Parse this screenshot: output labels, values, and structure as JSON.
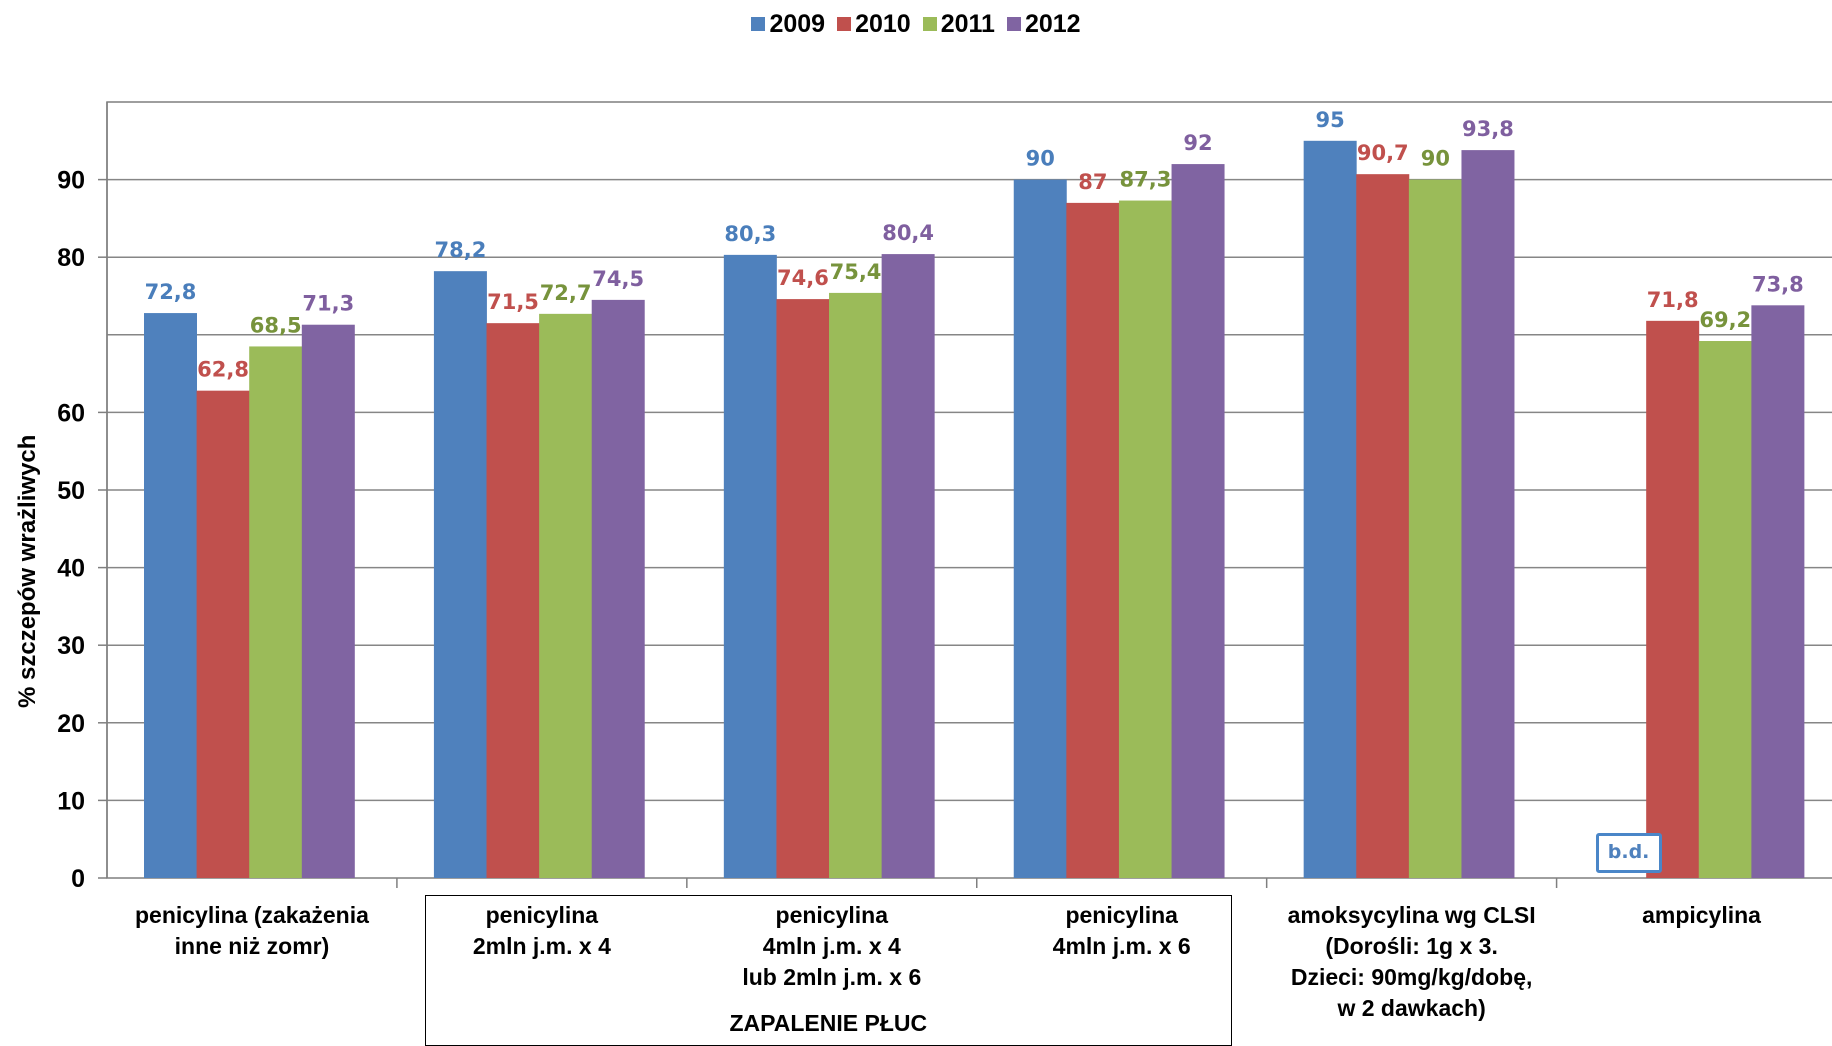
{
  "chart_data": {
    "type": "bar",
    "ylabel": "% szczepów wrażliwych",
    "xlabel": "",
    "ylim": [
      0,
      100
    ],
    "yticks": [
      0,
      10,
      20,
      30,
      40,
      50,
      60,
      80,
      90
    ],
    "grid": true,
    "legend_position": "top-center",
    "categories": [
      "penicylina (zakażenia\ninne niż zomr)",
      "penicylina\n2mln j.m. x 4",
      "penicylina\n4mln j.m. x 4\nlub 2mln j.m. x 6",
      "penicylina\n4mln j.m. x 6",
      "amoksycylina wg CLSI\n(Dorośli: 1g x 3.\nDzieci: 90mg/kg/dobę,\nw 2 dawkach)",
      "ampicylina"
    ],
    "series": [
      {
        "name": "2009",
        "color": "#4f81bd",
        "label_color": "#4a7ebb",
        "values": [
          72.8,
          78.2,
          80.3,
          90,
          95,
          null
        ],
        "labels": [
          "72,8",
          "78,2",
          "80,3",
          "90",
          "95",
          ""
        ]
      },
      {
        "name": "2010",
        "color": "#c0504d",
        "label_color": "#c0504d",
        "values": [
          62.8,
          71.5,
          74.6,
          87,
          90.7,
          71.8
        ],
        "labels": [
          "62,8",
          "71,5",
          "74,6",
          "87",
          "90,7",
          "71,8"
        ]
      },
      {
        "name": "2011",
        "color": "#9bbb59",
        "label_color": "#77933c",
        "values": [
          68.5,
          72.7,
          75.4,
          87.3,
          90,
          69.2
        ],
        "labels": [
          "68,5",
          "72,7",
          "75,4",
          "87,3",
          "90",
          "69,2"
        ]
      },
      {
        "name": "2012",
        "color": "#8064a2",
        "label_color": "#7f5f9f",
        "values": [
          71.3,
          74.5,
          80.4,
          92,
          93.8,
          73.8
        ],
        "labels": [
          "71,3",
          "74,5",
          "80,4",
          "92",
          "93,8",
          "73,8"
        ]
      }
    ],
    "group_label": "ZAPALENIE PŁUC",
    "missing_label": "b.d."
  }
}
